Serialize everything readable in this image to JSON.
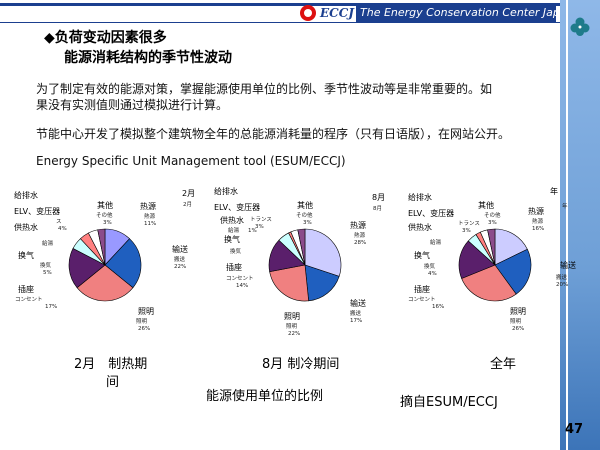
{
  "header": {
    "logo_text": "ECCJ",
    "org_name": "The Energy Conservation Center Japan",
    "colors": {
      "brand_blue": "#1b3f8f",
      "logo_red": "#dd1111",
      "accent_green": "#1e7b8a"
    }
  },
  "slide": {
    "title_bullet": "◆",
    "title": "负荷变动因素很多",
    "subtitle": "能源消耗结构的季节性波动",
    "para1_line1": "为了制定有效的能源对策，掌握能源使用单位的比例、季节性波动等是非常重要的。如",
    "para1_line2": "果没有实测值则通过模拟进行计算。",
    "para2": "节能中心开发了模拟整个建筑物全年的总能源消耗量的程序（只有日语版），在网站公开。",
    "tool_name": "Energy Specific Unit Management tool (ESUM/ECCJ)",
    "caption_feb_a": "2月　制热期",
    "caption_feb_b": "间",
    "caption_aug": "8月 制冷期间",
    "caption_year": "全年",
    "caption_ratio": "能源使用单位的比例",
    "caption_source": "摘自ESUM/ECCJ",
    "page_number": "47"
  },
  "chart_data": [
    {
      "type": "pie",
      "title": "2月",
      "subtitle": "2月",
      "slices": [
        {
          "category": "熱源",
          "label_cn": "热源",
          "value": 11,
          "color": "#9999ff"
        },
        {
          "category": "搬送",
          "label_cn": "输送",
          "value": 22,
          "color": "#1f5fbf"
        },
        {
          "category": "照明",
          "label_cn": "照明",
          "value": 26,
          "color": "#f08080"
        },
        {
          "category": "コンセント",
          "label_cn": "插座",
          "value": 17,
          "color": "#5a1f6b"
        },
        {
          "category": "換気",
          "label_cn": "换气",
          "value": 5,
          "color": "#ccffff"
        },
        {
          "category": "給湯",
          "label_cn": "供热水",
          "value": 4,
          "color": "#ff8080"
        },
        {
          "category": "ELV、変圧器",
          "label_cn": "ELV、变压器",
          "value": 4,
          "color": "#ffffff"
        },
        {
          "category": "その他",
          "label_cn": "其他",
          "value": 3,
          "color": "#8b4b8b"
        }
      ]
    },
    {
      "type": "pie",
      "title": "8月",
      "subtitle": "8月",
      "slices": [
        {
          "category": "熱源",
          "label_cn": "热源",
          "value": 28,
          "color": "#ccccff"
        },
        {
          "category": "搬送",
          "label_cn": "输送",
          "value": 17,
          "color": "#1f5fbf"
        },
        {
          "category": "照明",
          "label_cn": "照明",
          "value": 22,
          "color": "#f08080"
        },
        {
          "category": "コンセント",
          "label_cn": "插座",
          "value": 14,
          "color": "#5a1f6b"
        },
        {
          "category": "換気",
          "label_cn": "换气",
          "value": 5,
          "color": "#ccffff"
        },
        {
          "category": "給湯",
          "label_cn": "供热水",
          "value": 1,
          "color": "#ff8080"
        },
        {
          "category": "トランス",
          "label_cn": "ELV、变压器",
          "value": 3,
          "color": "#ffffff"
        },
        {
          "category": "その他",
          "label_cn": "其他",
          "value": 3,
          "color": "#8b4b8b"
        }
      ]
    },
    {
      "type": "pie",
      "title": "年",
      "subtitle": "年",
      "slices": [
        {
          "category": "熱源",
          "label_cn": "热源",
          "value": 16,
          "color": "#ccccff"
        },
        {
          "category": "搬送",
          "label_cn": "输送",
          "value": 20,
          "color": "#1f5fbf"
        },
        {
          "category": "照明",
          "label_cn": "照明",
          "value": 26,
          "color": "#f08080"
        },
        {
          "category": "コンセント",
          "label_cn": "插座",
          "value": 16,
          "color": "#5a1f6b"
        },
        {
          "category": "換気",
          "label_cn": "换气",
          "value": 4,
          "color": "#ccffff"
        },
        {
          "category": "給湯",
          "label_cn": "供热水",
          "value": 2,
          "color": "#ff8080"
        },
        {
          "category": "トランス",
          "label_cn": "ELV、变压器",
          "value": 3,
          "color": "#ffffff"
        },
        {
          "category": "その他",
          "label_cn": "其他",
          "value": 3,
          "color": "#8b4b8b"
        }
      ]
    }
  ],
  "pie_texts": {
    "feb": {
      "heat_cn": "热源",
      "heat_jp": "熱源",
      "heat_pct": "11%",
      "trans_cn": "输送",
      "trans_jp": "搬送",
      "trans_pct": "22%",
      "light_cn": "照明",
      "light_jp": "照明",
      "light_pct": "26%",
      "outlet_cn": "插座",
      "outlet_jp": "コンセント",
      "outlet_pct": "17%",
      "vent_cn": "换气",
      "vent_jp": "換気",
      "vent_pct": "5%",
      "hw_cn": "供热水",
      "hw_jp": "給湯",
      "elv_cn": "ELV、变压器",
      "elv_small": "ス",
      "elv_pct": "4%",
      "other_cn": "其他",
      "other_jp": "その他",
      "other_pct": "3%",
      "pre_cn": "给排水",
      "month": "2月",
      "month_small": "2月"
    },
    "aug": {
      "heat_cn": "热源",
      "heat_jp": "熱源",
      "heat_pct": "28%",
      "trans_cn": "输送",
      "trans_jp": "搬送",
      "trans_pct": "17%",
      "light_cn": "照明",
      "light_jp": "照明",
      "light_pct": "22%",
      "outlet_cn": "插座",
      "outlet_jp": "コンセント",
      "outlet_pct": "14%",
      "vent_cn": "换气",
      "vent_jp": "換気",
      "hw_cn": "供热水",
      "hw_jp": "給湯",
      "hw_pct": "1%",
      "elv_cn": "ELV、变压器",
      "elv_small": "トランス",
      "elv_pct": "3%",
      "other_cn": "其他",
      "other_jp": "その他",
      "other_pct": "3%",
      "pre_cn": "给排水",
      "month": "8月",
      "month_small": "8月"
    },
    "year": {
      "heat_cn": "热源",
      "heat_jp": "熱源",
      "heat_pct": "16%",
      "trans_cn": "输送",
      "trans_jp": "搬送",
      "trans_pct": "20%",
      "light_cn": "照明",
      "light_jp": "照明",
      "light_pct": "26%",
      "outlet_cn": "插座",
      "outlet_jp": "コンセント",
      "outlet_pct": "16%",
      "vent_cn": "换气",
      "vent_jp": "換気",
      "vent_pct": "4%",
      "hw_cn": "供热水",
      "hw_jp": "給湯",
      "elv_cn": "ELV、变压器",
      "elv_small": "トランス",
      "elv_pct": "3%",
      "other_cn": "其他",
      "other_jp": "その他",
      "other_pct": "3%",
      "pre_cn": "给排水",
      "month": "年",
      "month_small": "年"
    }
  }
}
